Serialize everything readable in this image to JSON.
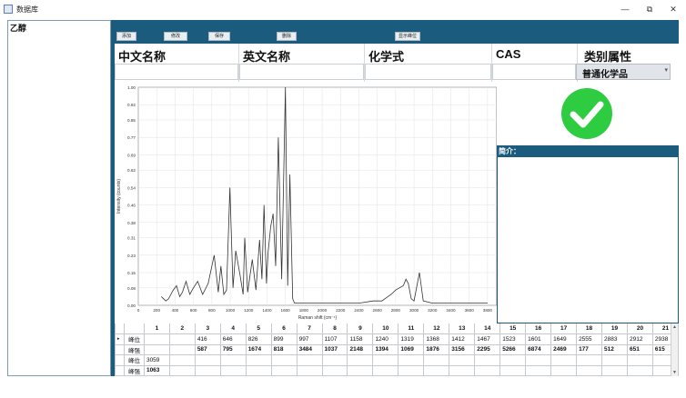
{
  "window": {
    "title": "数据库",
    "minimize": "—",
    "restore": "⧉",
    "close": "✕"
  },
  "sidebar": {
    "items": [
      {
        "label": "乙醇"
      }
    ]
  },
  "toolbar": {
    "add": "添加",
    "modify": "修改",
    "save": "保存",
    "delete": "删除",
    "show_peaks": "显示峰位"
  },
  "header": {
    "columns": [
      "中文名称",
      "英文名称",
      "化学式",
      "CAS",
      "类别属性"
    ],
    "category_value": "普通化学品"
  },
  "status": {
    "check_icon": "check-circle-icon",
    "color": "#2ecc40"
  },
  "intro": {
    "label": "简介："
  },
  "chart_data": {
    "type": "line",
    "xlabel": "Raman shift (cm⁻¹)",
    "ylabel": "Intensity (counts)",
    "xlim": [
      0,
      3900
    ],
    "ylim": [
      0,
      1.0
    ],
    "xticks": [
      "0",
      "200",
      "400",
      "600",
      "800",
      "1000",
      "1200",
      "1400",
      "1600",
      "1800",
      "2000",
      "2200",
      "2400",
      "2600",
      "2800",
      "3000",
      "3200",
      "3400",
      "3600",
      "3800"
    ],
    "yticks": [
      "1.00",
      "0.92",
      "0.85",
      "0.77",
      "0.69",
      "0.62",
      "0.54",
      "0.46",
      "0.38",
      "0.31",
      "0.23",
      "0.15",
      "0.08",
      "0.00"
    ],
    "x": [
      250,
      300,
      330,
      380,
      416,
      450,
      480,
      520,
      560,
      600,
      646,
      700,
      760,
      826,
      870,
      899,
      930,
      960,
      997,
      1030,
      1060,
      1107,
      1140,
      1158,
      1190,
      1240,
      1280,
      1319,
      1345,
      1368,
      1395,
      1412,
      1440,
      1467,
      1495,
      1523,
      1560,
      1601,
      1625,
      1649,
      1680,
      1700,
      1800,
      2000,
      2200,
      2400,
      2555,
      2650,
      2750,
      2800,
      2883,
      2912,
      2938,
      2970,
      3000,
      3059,
      3100,
      3200,
      3400,
      3600,
      3800
    ],
    "y": [
      0.04,
      0.02,
      0.03,
      0.07,
      0.09,
      0.04,
      0.06,
      0.11,
      0.05,
      0.08,
      0.11,
      0.05,
      0.1,
      0.23,
      0.06,
      0.18,
      0.05,
      0.07,
      0.54,
      0.08,
      0.25,
      0.14,
      0.05,
      0.31,
      0.06,
      0.21,
      0.07,
      0.3,
      0.12,
      0.46,
      0.1,
      0.24,
      0.36,
      0.42,
      0.18,
      0.77,
      0.12,
      1.0,
      0.09,
      0.6,
      0.03,
      0.01,
      0.01,
      0.01,
      0.01,
      0.01,
      0.02,
      0.02,
      0.05,
      0.07,
      0.09,
      0.12,
      0.1,
      0.03,
      0.02,
      0.15,
      0.02,
      0.01,
      0.01,
      0.01,
      0.01
    ],
    "grid": true,
    "legend": "none"
  },
  "table": {
    "col_headers": [
      "1",
      "2",
      "3",
      "4",
      "5",
      "6",
      "7",
      "8",
      "9",
      "10",
      "11",
      "12",
      "13",
      "14",
      "15",
      "16",
      "17",
      "18",
      "19",
      "20",
      "21"
    ],
    "rows": [
      {
        "marker": "▸",
        "label": "峰位",
        "bold": false,
        "cells": [
          "",
          "",
          "416",
          "646",
          "826",
          "899",
          "997",
          "1107",
          "1158",
          "1240",
          "1319",
          "1368",
          "1412",
          "1467",
          "1523",
          "1601",
          "1649",
          "2555",
          "2883",
          "2912",
          "2938"
        ]
      },
      {
        "marker": "",
        "label": "峰强",
        "bold": true,
        "cells": [
          "",
          "",
          "587",
          "795",
          "1674",
          "818",
          "3484",
          "1037",
          "2148",
          "1394",
          "1069",
          "1876",
          "3156",
          "2295",
          "5266",
          "6874",
          "2469",
          "177",
          "512",
          "651",
          "615"
        ]
      },
      {
        "marker": "",
        "label": "峰位",
        "bold": false,
        "cells": [
          "3059",
          "",
          "",
          "",
          "",
          "",
          "",
          "",
          "",
          "",
          "",
          "",
          "",
          "",
          "",
          "",
          "",
          "",
          "",
          "",
          ""
        ]
      },
      {
        "marker": "",
        "label": "峰强",
        "bold": true,
        "cells": [
          "1063",
          "",
          "",
          "",
          "",
          "",
          "",
          "",
          "",
          "",
          "",
          "",
          "",
          "",
          "",
          "",
          "",
          "",
          "",
          "",
          ""
        ]
      }
    ]
  }
}
